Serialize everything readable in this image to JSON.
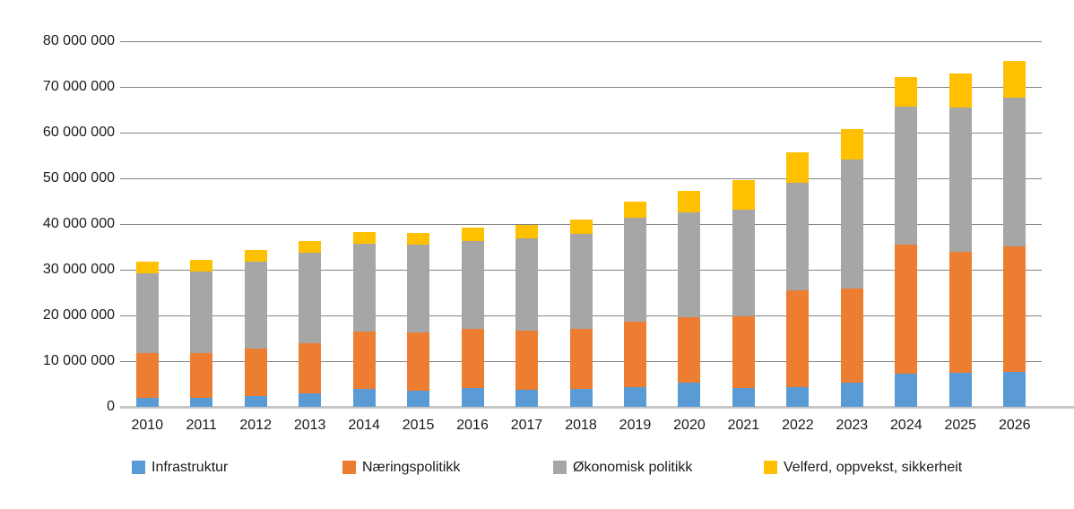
{
  "chart_data": {
    "type": "bar",
    "stacked": true,
    "title": "",
    "xlabel": "",
    "ylabel": "",
    "categories": [
      "2010",
      "2011",
      "2012",
      "2013",
      "2014",
      "2015",
      "2016",
      "2017",
      "2018",
      "2019",
      "2020",
      "2021",
      "2022",
      "2023",
      "2024",
      "2025",
      "2026"
    ],
    "series": [
      {
        "name": "Infrastruktur",
        "color": "#5B9BD5",
        "values": [
          1900000,
          2000000,
          2400000,
          2900000,
          3900000,
          3600000,
          4200000,
          3800000,
          4000000,
          4400000,
          5300000,
          4200000,
          4300000,
          5300000,
          7200000,
          7500000,
          7600000
        ]
      },
      {
        "name": "Næringspolitikk",
        "color": "#ED7D31",
        "values": [
          9800000,
          9700000,
          10400000,
          11100000,
          12500000,
          12600000,
          12800000,
          12900000,
          13100000,
          14300000,
          14300000,
          15600000,
          21100000,
          20600000,
          28300000,
          26400000,
          27500000
        ]
      },
      {
        "name": "Økonomisk politikk",
        "color": "#A6A6A6",
        "values": [
          17600000,
          18000000,
          18900000,
          19700000,
          19300000,
          19300000,
          19200000,
          20100000,
          20800000,
          22600000,
          22900000,
          23300000,
          23600000,
          28300000,
          30100000,
          31500000,
          32600000
        ]
      },
      {
        "name": "Velferd, oppvekst, sikkerheit",
        "color": "#FFC000",
        "values": [
          2400000,
          2400000,
          2600000,
          2500000,
          2600000,
          2500000,
          3100000,
          3100000,
          3100000,
          3700000,
          4700000,
          6500000,
          6600000,
          6600000,
          6600000,
          7500000,
          7900000
        ]
      }
    ],
    "ylim": [
      0,
      80000000
    ],
    "y_ticks": [
      0,
      10000000,
      20000000,
      30000000,
      40000000,
      50000000,
      60000000,
      70000000,
      80000000
    ],
    "y_tick_labels": [
      "0",
      "10 000 000",
      "20 000 000",
      "30 000 000",
      "40 000 000",
      "50 000 000",
      "60 000 000",
      "70 000 000",
      "80 000 000"
    ],
    "grid": true,
    "gridline_color": "#858585",
    "axis_line_color": "#C6C6C6",
    "text_color": "#1a1a1a",
    "legend_position": "bottom"
  }
}
